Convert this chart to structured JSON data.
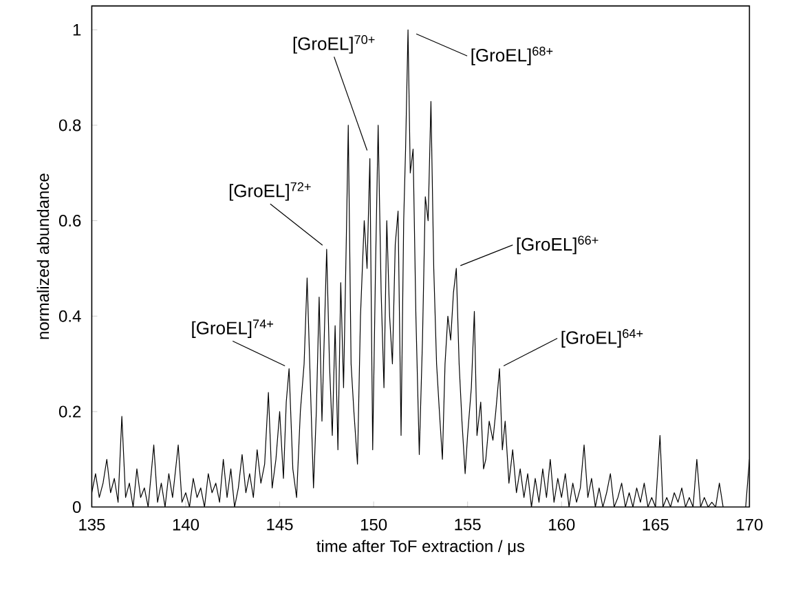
{
  "chart_data": {
    "type": "line",
    "xlabel": "time after ToF extraction / μs",
    "ylabel": "normalized abundance",
    "xlim": [
      135,
      170
    ],
    "ylim": [
      0,
      1.05
    ],
    "xticks": [
      135,
      140,
      145,
      150,
      155,
      160,
      165,
      170
    ],
    "yticks": [
      0,
      0.2,
      0.4,
      0.6,
      0.8,
      1
    ],
    "grid": false,
    "marker": "none",
    "line_style": "solid",
    "series": [
      {
        "color": "#000000",
        "x": [
          135.0,
          135.2,
          135.4,
          135.6,
          135.8,
          136.0,
          136.2,
          136.4,
          136.6,
          136.8,
          137.0,
          137.2,
          137.4,
          137.6,
          137.8,
          138.0,
          138.3,
          138.5,
          138.7,
          138.9,
          139.1,
          139.3,
          139.6,
          139.8,
          140.0,
          140.2,
          140.4,
          140.6,
          140.8,
          141.0,
          141.2,
          141.4,
          141.6,
          141.8,
          142.0,
          142.2,
          142.4,
          142.6,
          142.8,
          143.0,
          143.2,
          143.4,
          143.6,
          143.8,
          144.0,
          144.2,
          144.4,
          144.6,
          144.8,
          145.0,
          145.2,
          145.35,
          145.5,
          145.7,
          145.9,
          146.1,
          146.3,
          146.46,
          146.6,
          146.8,
          146.95,
          147.1,
          147.25,
          147.5,
          147.65,
          147.8,
          147.95,
          148.1,
          148.25,
          148.4,
          148.55,
          148.65,
          148.8,
          148.95,
          149.14,
          149.3,
          149.5,
          149.65,
          149.8,
          149.95,
          150.1,
          150.24,
          150.4,
          150.55,
          150.7,
          150.85,
          151.0,
          151.15,
          151.3,
          151.46,
          151.6,
          151.7,
          151.83,
          151.95,
          152.1,
          152.25,
          152.43,
          152.6,
          152.75,
          152.9,
          153.05,
          153.2,
          153.35,
          153.5,
          153.66,
          153.8,
          153.95,
          154.1,
          154.25,
          154.4,
          154.55,
          154.7,
          154.87,
          155.0,
          155.2,
          155.36,
          155.5,
          155.7,
          155.85,
          155.97,
          156.15,
          156.35,
          156.5,
          156.7,
          156.85,
          157.0,
          157.2,
          157.4,
          157.6,
          157.8,
          158.0,
          158.2,
          158.4,
          158.6,
          158.8,
          159.0,
          159.2,
          159.4,
          159.6,
          159.8,
          160.0,
          160.2,
          160.4,
          160.6,
          160.8,
          161.0,
          161.2,
          161.4,
          161.6,
          161.8,
          162.0,
          162.2,
          162.4,
          162.6,
          162.8,
          163.0,
          163.2,
          163.4,
          163.6,
          163.8,
          164.0,
          164.2,
          164.4,
          164.6,
          164.8,
          165.0,
          165.24,
          165.4,
          165.6,
          165.8,
          166.0,
          166.2,
          166.4,
          166.6,
          166.8,
          167.0,
          167.2,
          167.4,
          167.6,
          167.8,
          168.0,
          168.2,
          168.4,
          168.6,
          168.8,
          169.0,
          169.2,
          169.4,
          169.6,
          169.8,
          170.0
        ],
        "values": [
          0.03,
          0.07,
          0.02,
          0.05,
          0.1,
          0.03,
          0.06,
          0.01,
          0.19,
          0.02,
          0.05,
          0.0,
          0.08,
          0.02,
          0.04,
          0.0,
          0.13,
          0.01,
          0.05,
          0.0,
          0.07,
          0.02,
          0.13,
          0.01,
          0.03,
          0.0,
          0.06,
          0.02,
          0.04,
          0.0,
          0.07,
          0.03,
          0.05,
          0.01,
          0.1,
          0.02,
          0.08,
          0.0,
          0.04,
          0.11,
          0.03,
          0.07,
          0.02,
          0.12,
          0.05,
          0.09,
          0.24,
          0.04,
          0.1,
          0.2,
          0.06,
          0.22,
          0.29,
          0.08,
          0.02,
          0.2,
          0.3,
          0.48,
          0.3,
          0.04,
          0.2,
          0.44,
          0.18,
          0.54,
          0.3,
          0.15,
          0.38,
          0.12,
          0.47,
          0.25,
          0.57,
          0.8,
          0.3,
          0.2,
          0.09,
          0.4,
          0.6,
          0.5,
          0.73,
          0.12,
          0.5,
          0.8,
          0.45,
          0.25,
          0.6,
          0.4,
          0.3,
          0.55,
          0.62,
          0.15,
          0.6,
          0.75,
          1.0,
          0.7,
          0.75,
          0.4,
          0.11,
          0.35,
          0.65,
          0.6,
          0.85,
          0.5,
          0.3,
          0.2,
          0.1,
          0.3,
          0.4,
          0.35,
          0.45,
          0.5,
          0.3,
          0.18,
          0.07,
          0.15,
          0.25,
          0.41,
          0.15,
          0.22,
          0.08,
          0.1,
          0.18,
          0.14,
          0.2,
          0.29,
          0.12,
          0.18,
          0.05,
          0.12,
          0.03,
          0.08,
          0.02,
          0.07,
          0.0,
          0.06,
          0.01,
          0.08,
          0.02,
          0.1,
          0.01,
          0.06,
          0.02,
          0.07,
          0.0,
          0.05,
          0.01,
          0.04,
          0.13,
          0.02,
          0.06,
          0.0,
          0.04,
          0.0,
          0.03,
          0.07,
          0.0,
          0.02,
          0.05,
          0.0,
          0.03,
          0.0,
          0.04,
          0.01,
          0.05,
          0.0,
          0.02,
          0.0,
          0.15,
          0.0,
          0.02,
          0.0,
          0.03,
          0.01,
          0.04,
          0.0,
          0.02,
          0.0,
          0.1,
          0.0,
          0.02,
          0.0,
          0.01,
          0.0,
          0.05,
          0.0,
          0.0,
          0.0,
          0.0,
          0.0,
          0.0,
          0.0,
          0.1
        ]
      }
    ],
    "annotations": [
      {
        "text": "[GroEL]$^{70+}$",
        "x": 149.8,
        "y": 0.73
      },
      {
        "text": "[GroEL]$^{68+}$",
        "x": 151.83,
        "y": 1.0
      },
      {
        "text": "[GroEL]$^{72+}$",
        "x": 147.5,
        "y": 0.54
      },
      {
        "text": "[GroEL]$^{66+}$",
        "x": 154.4,
        "y": 0.5
      },
      {
        "text": "[GroEL]$^{74+}$",
        "x": 145.5,
        "y": 0.29
      },
      {
        "text": "[GroEL]$^{64+}$",
        "x": 156.7,
        "y": 0.29
      }
    ]
  }
}
